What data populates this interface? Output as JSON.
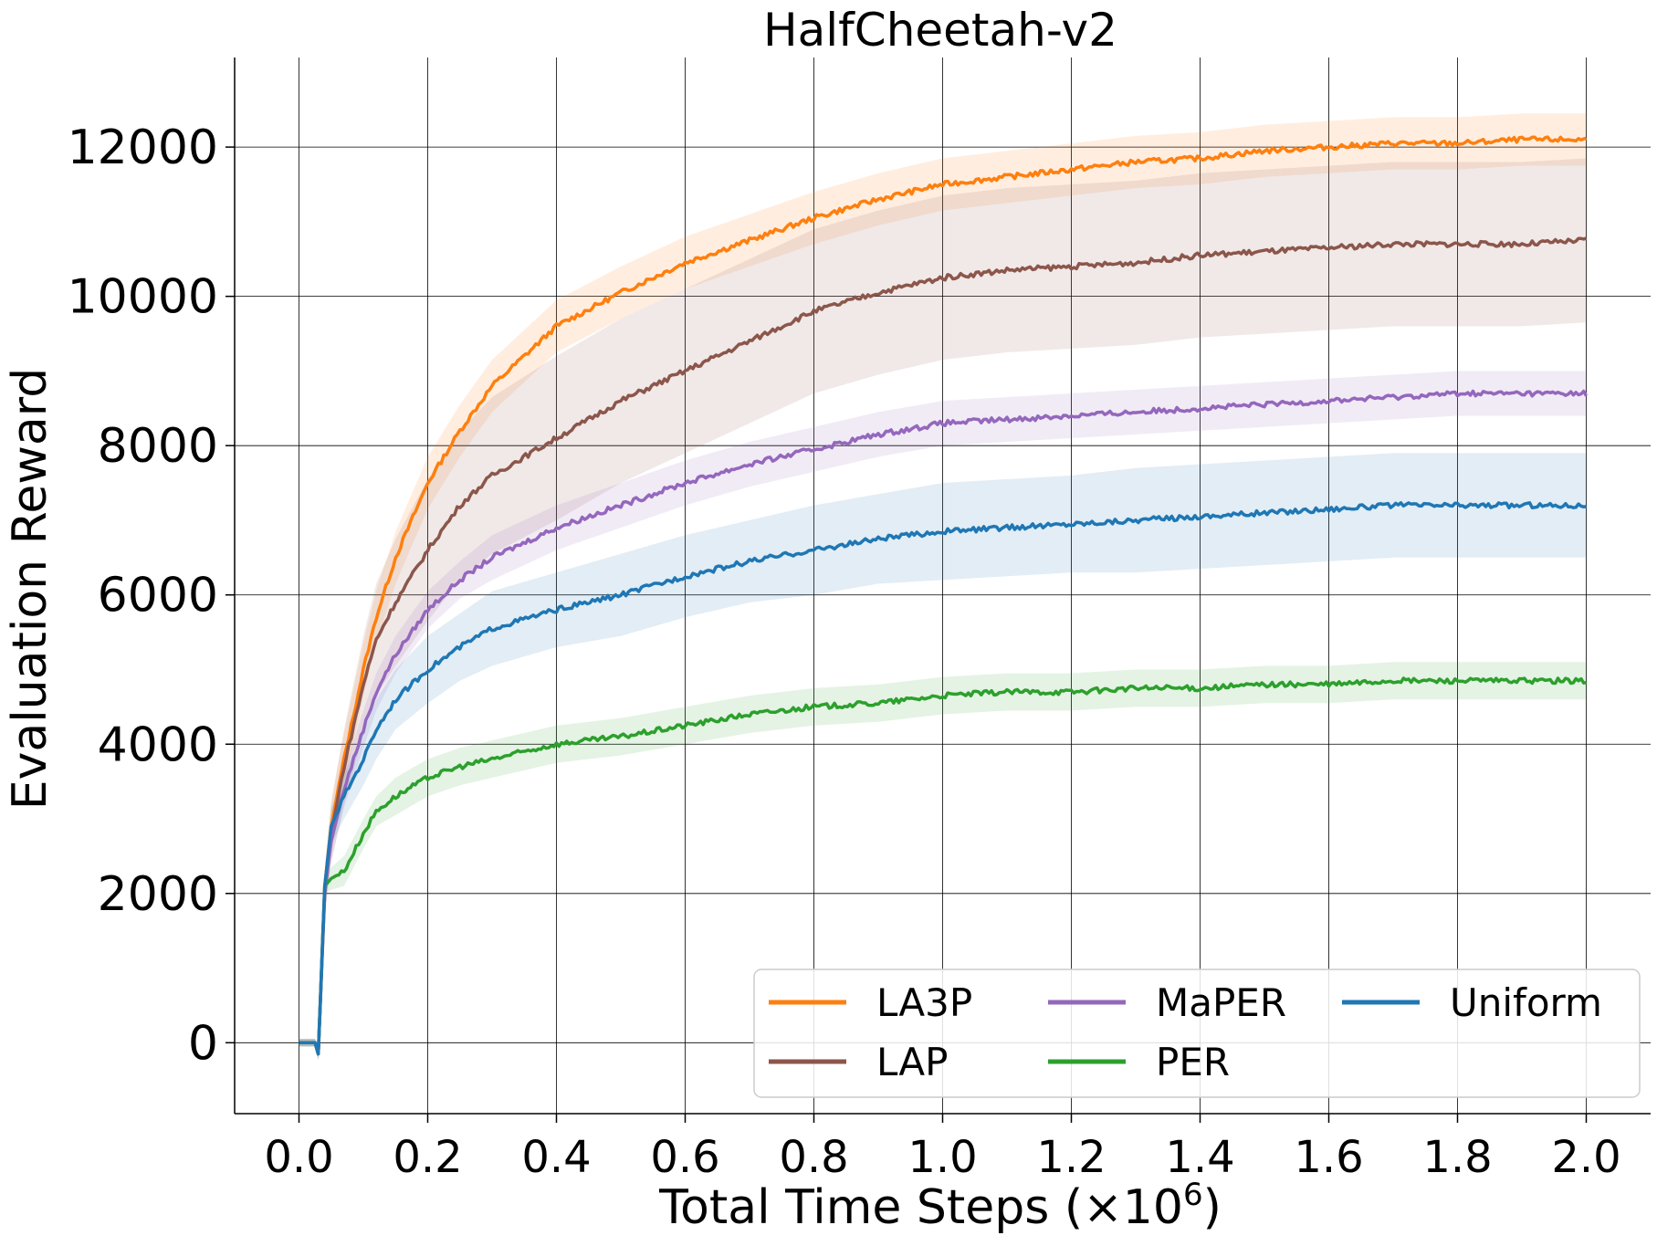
{
  "chart_data": {
    "type": "line",
    "title": "HalfCheetah-v2",
    "xlabel": "Total Time Steps (×10",
    "xlabel_exponent": "6",
    "xlabel_close": ")",
    "ylabel": "Evaluation Reward",
    "xlim": [
      -0.1,
      2.1
    ],
    "ylim": [
      -950,
      13200
    ],
    "xticks": [
      0.0,
      0.2,
      0.4,
      0.6,
      0.8,
      1.0,
      1.2,
      1.4,
      1.6,
      1.8,
      2.0
    ],
    "xtick_labels": [
      "0.0",
      "0.2",
      "0.4",
      "0.6",
      "0.8",
      "1.0",
      "1.2",
      "1.4",
      "1.6",
      "1.8",
      "2.0"
    ],
    "yticks": [
      0,
      2000,
      4000,
      6000,
      8000,
      10000,
      12000
    ],
    "ytick_labels": [
      "0",
      "2000",
      "4000",
      "6000",
      "8000",
      "10000",
      "12000"
    ],
    "grid": true,
    "legend_position": "lower-right",
    "legend_columns": 3,
    "x": [
      0.0,
      0.025,
      0.03,
      0.04,
      0.05,
      0.07,
      0.1,
      0.12,
      0.15,
      0.2,
      0.25,
      0.3,
      0.4,
      0.5,
      0.6,
      0.7,
      0.8,
      0.9,
      1.0,
      1.1,
      1.2,
      1.3,
      1.4,
      1.5,
      1.6,
      1.7,
      1.8,
      1.9,
      2.0
    ],
    "series": [
      {
        "name": "LA3P",
        "color": "#ff7f0e",
        "values": [
          0,
          0,
          -150,
          2100,
          2900,
          3800,
          5000,
          5700,
          6500,
          7500,
          8200,
          8800,
          9600,
          10050,
          10450,
          10750,
          11050,
          11300,
          11500,
          11600,
          11700,
          11800,
          11850,
          11950,
          12000,
          12050,
          12050,
          12100,
          12100
        ],
        "band": [
          50,
          50,
          80,
          300,
          350,
          350,
          350,
          350,
          350,
          350,
          350,
          350,
          350,
          350,
          350,
          350,
          350,
          350,
          350,
          350,
          350,
          350,
          350,
          350,
          350,
          350,
          350,
          350,
          350
        ]
      },
      {
        "name": "LAP",
        "color": "#8c564b",
        "values": [
          0,
          0,
          -150,
          2000,
          2800,
          3700,
          4800,
          5400,
          5900,
          6600,
          7200,
          7600,
          8100,
          8600,
          9000,
          9400,
          9800,
          10050,
          10250,
          10350,
          10400,
          10450,
          10550,
          10600,
          10650,
          10700,
          10700,
          10700,
          10750
        ],
        "band": [
          50,
          50,
          80,
          300,
          400,
          500,
          650,
          750,
          850,
          950,
          1000,
          1050,
          1100,
          1100,
          1100,
          1100,
          1100,
          1100,
          1100,
          1100,
          1100,
          1100,
          1100,
          1100,
          1100,
          1100,
          1100,
          1100,
          1100
        ]
      },
      {
        "name": "MaPER",
        "color": "#9467bd",
        "values": [
          0,
          0,
          -150,
          2000,
          2700,
          3400,
          4200,
          4700,
          5200,
          5800,
          6200,
          6500,
          6900,
          7200,
          7500,
          7750,
          7950,
          8150,
          8300,
          8350,
          8400,
          8450,
          8500,
          8550,
          8600,
          8650,
          8700,
          8700,
          8700
        ],
        "band": [
          50,
          50,
          80,
          250,
          250,
          250,
          250,
          250,
          250,
          250,
          250,
          300,
          300,
          300,
          300,
          300,
          300,
          300,
          300,
          300,
          300,
          300,
          300,
          300,
          300,
          300,
          300,
          300,
          300
        ]
      },
      {
        "name": "PER",
        "color": "#2ca02c",
        "values": [
          0,
          0,
          -150,
          2100,
          2200,
          2300,
          2800,
          3100,
          3300,
          3550,
          3700,
          3800,
          4000,
          4100,
          4250,
          4400,
          4500,
          4550,
          4650,
          4700,
          4700,
          4750,
          4750,
          4800,
          4800,
          4850,
          4850,
          4850,
          4850
        ],
        "band": [
          50,
          50,
          80,
          100,
          150,
          200,
          200,
          200,
          250,
          250,
          250,
          250,
          250,
          250,
          250,
          250,
          250,
          250,
          250,
          250,
          250,
          250,
          250,
          250,
          250,
          250,
          250,
          250,
          250
        ]
      },
      {
        "name": "Uniform",
        "color": "#1f77b4",
        "values": [
          0,
          0,
          -150,
          2100,
          2900,
          3300,
          3800,
          4200,
          4600,
          5000,
          5300,
          5550,
          5800,
          6000,
          6250,
          6450,
          6600,
          6750,
          6850,
          6900,
          6950,
          7000,
          7050,
          7100,
          7150,
          7200,
          7200,
          7200,
          7200
        ],
        "band": [
          50,
          50,
          80,
          200,
          250,
          300,
          350,
          400,
          400,
          450,
          450,
          500,
          500,
          550,
          550,
          550,
          600,
          600,
          650,
          650,
          650,
          700,
          700,
          700,
          700,
          700,
          700,
          700,
          700
        ]
      }
    ]
  }
}
